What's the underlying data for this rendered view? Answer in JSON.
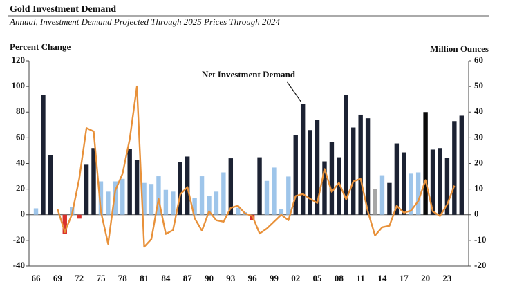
{
  "chart_data": {
    "type": "bar-line",
    "title": "Gold Investment Demand",
    "subtitle": "Annual, Investment Demand Projected Through 2025 Prices Through 2024",
    "y_label": "Percent Change",
    "y2_label": "Million Ounces",
    "categories": [
      "66",
      null,
      null,
      "69",
      null,
      null,
      "72",
      null,
      null,
      "75",
      null,
      null,
      "78",
      null,
      null,
      "81",
      null,
      null,
      "84",
      null,
      null,
      "87",
      null,
      null,
      "90",
      null,
      null,
      "93",
      null,
      null,
      "96",
      null,
      null,
      "99",
      null,
      null,
      "02",
      null,
      null,
      "05",
      null,
      null,
      "08",
      null,
      null,
      "11",
      null,
      null,
      "14",
      null,
      null,
      "17",
      null,
      null,
      "20",
      null,
      null,
      "23",
      null,
      null
    ],
    "series": [
      {
        "name": "Net Investment Demand",
        "axis": "y2",
        "values": [
          2.5,
          46.8,
          23.2,
          null,
          -7.5,
          3,
          -1.5,
          19.5,
          26,
          13,
          9,
          13,
          14,
          25.7,
          21.4,
          12.4,
          12,
          15,
          9.7,
          9,
          20.5,
          22.7,
          6.5,
          15,
          7.3,
          9,
          16.5,
          22,
          2.7,
          1,
          -2,
          22.4,
          13.2,
          18.4,
          2.2,
          14.9,
          31,
          43.2,
          33,
          37,
          20.8,
          28.4,
          22.4,
          46.8,
          34,
          39,
          37.6,
          10,
          15.4,
          12.4,
          27.8,
          24.3,
          16,
          16.5,
          40,
          25.4,
          26,
          22.2,
          36.5,
          38.6
        ],
        "colors": [
          "#9ec5ea",
          "#1c2233",
          "#1c2233",
          "#1c2233",
          "#d9312b",
          "#9ec5ea",
          "#d9312b",
          "#1c2233",
          "#1c2233",
          "#9ec5ea",
          "#9ec5ea",
          "#9ec5ea",
          "#9ec5ea",
          "#1c2233",
          "#1c2233",
          "#9ec5ea",
          "#9ec5ea",
          "#9ec5ea",
          "#9ec5ea",
          "#9ec5ea",
          "#1c2233",
          "#1c2233",
          "#9ec5ea",
          "#9ec5ea",
          "#9ec5ea",
          "#9ec5ea",
          "#9ec5ea",
          "#1c2233",
          "#9ec5ea",
          "#9ec5ea",
          "#d9312b",
          "#1c2233",
          "#9ec5ea",
          "#9ec5ea",
          "#9ec5ea",
          "#9ec5ea",
          "#1c2233",
          "#1c2233",
          "#1c2233",
          "#1c2233",
          "#1c2233",
          "#1c2233",
          "#1c2233",
          "#1c2233",
          "#1c2233",
          "#1c2233",
          "#1c2233",
          "#a6a6a6",
          "#9ec5ea",
          "#1c2233",
          "#1c2233",
          "#1c2233",
          "#9ec5ea",
          "#9ec5ea",
          "#0a0a0a",
          "#1c2233",
          "#1c2233",
          "#1c2233",
          "#1c2233",
          "#1c2233"
        ]
      },
      {
        "axis": "y",
        "color": "#e8913a",
        "values": [
          null,
          null,
          null,
          4.3,
          -13.5,
          0.5,
          28,
          67.6,
          65,
          2.7,
          -22.7,
          19,
          32,
          59,
          100,
          -25,
          -19,
          12.4,
          -15,
          -12,
          16,
          21.6,
          -2.7,
          -12.4,
          2.7,
          -4.3,
          -5.4,
          5.4,
          7,
          1,
          -1,
          -14.6,
          -10.8,
          -5.4,
          0,
          -4.3,
          14.6,
          16.2,
          12.4,
          9.2,
          35.7,
          17.8,
          24.9,
          11.9,
          26,
          28,
          2.7,
          -16.2,
          -9.7,
          -8.6,
          7,
          1.6,
          3.2,
          10.8,
          27,
          2.7,
          -1,
          8,
          22.7,
          null
        ]
      }
    ],
    "ylim": [
      -40,
      120
    ],
    "yticks": [
      -40,
      -20,
      0,
      20,
      40,
      60,
      80,
      100,
      120
    ],
    "y2lim": [
      -20,
      60
    ],
    "y2ticks": [
      -20,
      -10,
      0,
      10,
      20,
      30,
      40,
      50,
      60
    ]
  }
}
